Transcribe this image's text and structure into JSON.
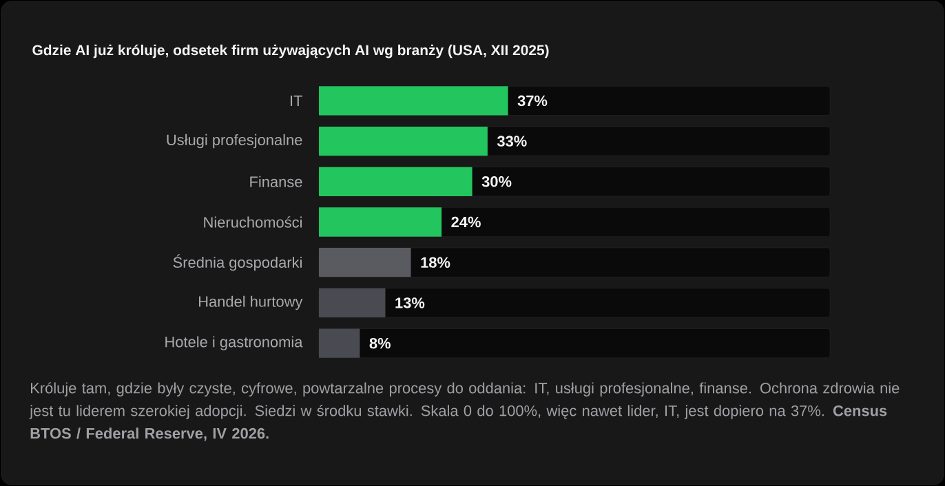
{
  "chart_data": {
    "type": "bar",
    "orientation": "horizontal",
    "title": "Gdzie AI już króluje, odsetek firm używających AI wg branży (USA, XII 2025)",
    "categories": [
      "IT",
      "Usługi profesjonalne",
      "Finanse",
      "Nieruchomości",
      "Średnia gospodarki",
      "Handel hurtowy",
      "Hotele i gastronomia"
    ],
    "values": [
      37,
      33,
      30,
      24,
      18,
      13,
      8
    ],
    "value_labels": [
      "37%",
      "33%",
      "30%",
      "24%",
      "18%",
      "13%",
      "8%"
    ],
    "colors": [
      "#22c55e",
      "#22c55e",
      "#22c55e",
      "#22c55e",
      "#5a5a61",
      "#4a4a52",
      "#4a4a52"
    ],
    "xlim": [
      0,
      100
    ],
    "annotations": [
      "Króluje tam, gdzie były czyste, cyfrowe, powtarzalne procesy do oddania: IT, usługi profesjonalne, finanse. Ochrona zdrowia nie jest tu liderem szerokiej adopcji. Siedzi w środku stawki. Skala 0 do 100%, więc nawet lider, IT, jest dopiero na 37%. **Census BTOS / Federal Reserve, IV 2026.**"
    ]
  }
}
